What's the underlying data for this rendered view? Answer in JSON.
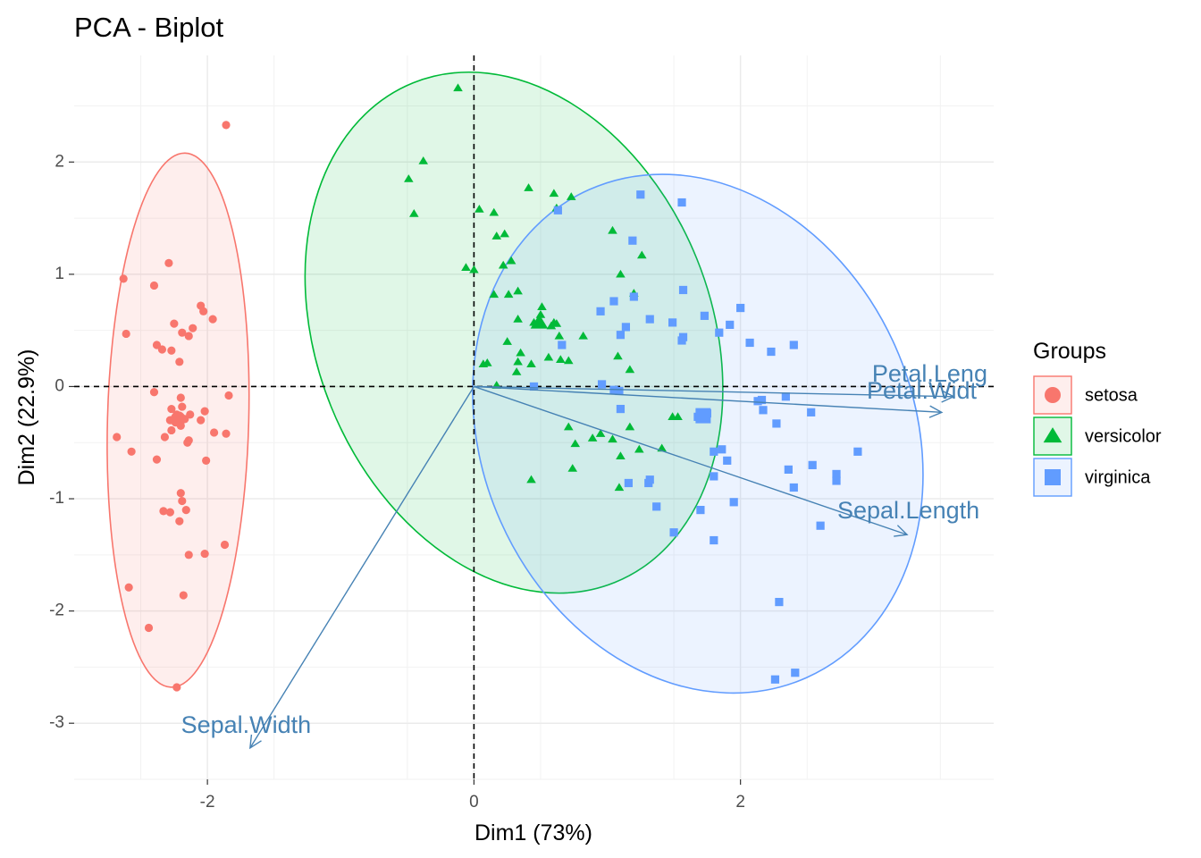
{
  "chart_data": {
    "type": "scatter",
    "title": "PCA - Biplot",
    "xlabel": "Dim1 (73%)",
    "ylabel": "Dim2 (22.9%)",
    "xlim": [
      -3.0,
      3.9
    ],
    "ylim": [
      -3.5,
      2.95
    ],
    "x_ticks": [
      -2,
      0,
      2
    ],
    "y_ticks": [
      -3,
      -2,
      -1,
      0,
      1,
      2
    ],
    "grid": true,
    "reference_lines": {
      "x": 0,
      "y": 0,
      "style": "dashed"
    },
    "legend": {
      "title": "Groups",
      "position": "right"
    },
    "groups": [
      {
        "name": "setosa",
        "color": "#F8766D",
        "shape": "circle",
        "centroid": [
          -2.22,
          -0.29
        ],
        "ellipse": {
          "center": [
            -2.22,
            -0.3
          ],
          "rx": 0.53,
          "ry": 2.38,
          "angle_deg": 1.5
        },
        "points": [
          [
            -2.68,
            -0.45
          ],
          [
            -2.59,
            -1.79
          ],
          [
            -2.44,
            -2.15
          ],
          [
            -2.23,
            -2.68
          ],
          [
            -2.14,
            -1.5
          ],
          [
            -2.02,
            -1.49
          ],
          [
            -1.87,
            -1.41
          ],
          [
            -2.18,
            -1.86
          ],
          [
            -2.33,
            -1.11
          ],
          [
            -2.28,
            -1.12
          ],
          [
            -2.19,
            -1.02
          ],
          [
            -2.2,
            -0.95
          ],
          [
            -2.16,
            -1.1
          ],
          [
            -2.21,
            -1.2
          ],
          [
            -2.57,
            -0.58
          ],
          [
            -2.38,
            -0.65
          ],
          [
            -2.01,
            -0.66
          ],
          [
            -2.14,
            -0.48
          ],
          [
            -2.15,
            -0.5
          ],
          [
            -2.32,
            -0.45
          ],
          [
            -2.27,
            -0.39
          ],
          [
            -1.95,
            -0.41
          ],
          [
            -1.86,
            -0.42
          ],
          [
            -2.28,
            -0.3
          ],
          [
            -2.2,
            -0.35
          ],
          [
            -2.23,
            -0.25
          ],
          [
            -2.19,
            -0.18
          ],
          [
            -2.13,
            -0.25
          ],
          [
            -2.27,
            -0.2
          ],
          [
            -2.2,
            -0.1
          ],
          [
            -2.4,
            -0.05
          ],
          [
            -2.02,
            -0.22
          ],
          [
            -2.05,
            -0.3
          ],
          [
            -2.26,
            -0.3
          ],
          [
            -2.17,
            -0.29
          ],
          [
            -2.24,
            -0.32
          ],
          [
            -2.21,
            -0.26
          ],
          [
            -1.84,
            -0.08
          ],
          [
            -2.61,
            0.47
          ],
          [
            -2.38,
            0.37
          ],
          [
            -2.34,
            0.33
          ],
          [
            -2.27,
            0.32
          ],
          [
            -2.19,
            0.48
          ],
          [
            -2.14,
            0.45
          ],
          [
            -2.11,
            0.52
          ],
          [
            -2.03,
            0.67
          ],
          [
            -2.05,
            0.72
          ],
          [
            -2.25,
            0.56
          ],
          [
            -1.96,
            0.6
          ],
          [
            -2.21,
            0.22
          ],
          [
            -2.63,
            0.96
          ],
          [
            -2.4,
            0.9
          ],
          [
            -2.29,
            1.1
          ],
          [
            -1.86,
            2.33
          ]
        ]
      },
      {
        "name": "versicolor",
        "color": "#00BA38",
        "shape": "triangle",
        "centroid": [
          0.49,
          0.57
        ],
        "ellipse": {
          "center": [
            0.3,
            0.48
          ],
          "rx": 1.48,
          "ry": 2.4,
          "angle_deg": -22
        },
        "points": [
          [
            -0.12,
            2.66
          ],
          [
            -0.38,
            2.01
          ],
          [
            -0.49,
            1.85
          ],
          [
            -0.45,
            1.54
          ],
          [
            0.04,
            1.58
          ],
          [
            0.15,
            1.55
          ],
          [
            0.41,
            1.77
          ],
          [
            0.6,
            1.72
          ],
          [
            0.73,
            1.69
          ],
          [
            0.23,
            1.36
          ],
          [
            0.17,
            1.34
          ],
          [
            0.62,
            1.59
          ],
          [
            1.04,
            1.39
          ],
          [
            0.28,
            1.12
          ],
          [
            0.22,
            1.08
          ],
          [
            -0.06,
            1.06
          ],
          [
            0.0,
            1.04
          ],
          [
            0.15,
            0.82
          ],
          [
            0.26,
            0.82
          ],
          [
            0.33,
            0.85
          ],
          [
            1.1,
            1.0
          ],
          [
            1.2,
            0.83
          ],
          [
            1.26,
            1.17
          ],
          [
            0.51,
            0.71
          ],
          [
            0.5,
            0.64
          ],
          [
            0.45,
            0.57
          ],
          [
            0.58,
            0.54
          ],
          [
            0.62,
            0.56
          ],
          [
            0.64,
            0.45
          ],
          [
            0.33,
            0.6
          ],
          [
            0.25,
            0.4
          ],
          [
            0.6,
            0.57
          ],
          [
            0.82,
            0.45
          ],
          [
            0.32,
            0.13
          ],
          [
            0.07,
            0.2
          ],
          [
            0.1,
            0.21
          ],
          [
            0.33,
            0.22
          ],
          [
            0.43,
            0.2
          ],
          [
            0.35,
            0.3
          ],
          [
            0.56,
            0.26
          ],
          [
            0.65,
            0.24
          ],
          [
            0.71,
            0.23
          ],
          [
            1.08,
            0.27
          ],
          [
            1.17,
            0.15
          ],
          [
            0.17,
            0.01
          ],
          [
            0.71,
            -0.36
          ],
          [
            1.24,
            -0.56
          ],
          [
            0.89,
            -0.46
          ],
          [
            1.04,
            -0.47
          ],
          [
            0.95,
            -0.42
          ],
          [
            0.74,
            -0.73
          ],
          [
            1.1,
            -0.62
          ],
          [
            1.09,
            -0.9
          ],
          [
            1.41,
            -0.55
          ],
          [
            1.49,
            -0.27
          ],
          [
            1.53,
            -0.27
          ],
          [
            0.43,
            -0.83
          ],
          [
            0.76,
            -0.51
          ],
          [
            1.17,
            -0.36
          ]
        ]
      },
      {
        "name": "virginica",
        "color": "#619CFF",
        "shape": "square",
        "centroid": [
          1.72,
          -0.26
        ],
        "ellipse": {
          "center": [
            1.68,
            -0.42
          ],
          "rx": 1.62,
          "ry": 2.38,
          "angle_deg": -24
        },
        "points": [
          [
            1.25,
            1.71
          ],
          [
            0.63,
            1.57
          ],
          [
            1.19,
            1.3
          ],
          [
            1.56,
            1.64
          ],
          [
            2.0,
            0.7
          ],
          [
            1.57,
            0.86
          ],
          [
            1.2,
            0.8
          ],
          [
            1.05,
            0.76
          ],
          [
            0.95,
            0.67
          ],
          [
            1.14,
            0.53
          ],
          [
            1.56,
            0.41
          ],
          [
            1.32,
            0.6
          ],
          [
            1.1,
            0.46
          ],
          [
            1.49,
            0.57
          ],
          [
            1.57,
            0.44
          ],
          [
            1.84,
            0.48
          ],
          [
            1.73,
            0.63
          ],
          [
            1.92,
            0.55
          ],
          [
            2.07,
            0.39
          ],
          [
            2.23,
            0.31
          ],
          [
            2.4,
            0.37
          ],
          [
            2.13,
            -0.13
          ],
          [
            2.34,
            -0.09
          ],
          [
            2.53,
            -0.23
          ],
          [
            2.88,
            -0.58
          ],
          [
            2.16,
            -0.12
          ],
          [
            1.68,
            -0.27
          ],
          [
            1.75,
            -0.24
          ],
          [
            1.86,
            -0.56
          ],
          [
            2.17,
            -0.21
          ],
          [
            2.27,
            -0.33
          ],
          [
            1.8,
            -0.58
          ],
          [
            1.95,
            -1.03
          ],
          [
            1.31,
            -0.86
          ],
          [
            1.9,
            -0.66
          ],
          [
            2.36,
            -0.74
          ],
          [
            2.6,
            -1.24
          ],
          [
            2.72,
            -0.78
          ],
          [
            2.72,
            -0.84
          ],
          [
            2.54,
            -0.7
          ],
          [
            2.29,
            -1.92
          ],
          [
            2.26,
            -2.61
          ],
          [
            2.41,
            -2.55
          ],
          [
            1.37,
            -1.07
          ],
          [
            1.7,
            -1.1
          ],
          [
            1.8,
            -1.37
          ],
          [
            1.5,
            -1.3
          ],
          [
            1.8,
            -0.8
          ],
          [
            2.4,
            -0.9
          ],
          [
            1.16,
            -0.86
          ],
          [
            1.32,
            -0.83
          ],
          [
            1.1,
            -0.2
          ],
          [
            1.09,
            -0.04
          ],
          [
            0.96,
            0.02
          ],
          [
            1.05,
            -0.03
          ],
          [
            0.45,
            0.0
          ],
          [
            0.66,
            0.37
          ]
        ]
      }
    ],
    "variables": [
      {
        "name": "Petal.Length",
        "label": "Petal.Leng",
        "x": 3.51,
        "y": -0.23,
        "label_x": 3.42,
        "label_y": 0.1
      },
      {
        "name": "Petal.Width",
        "label": "Petal.Widt",
        "x": 3.6,
        "y": -0.09,
        "label_x": 3.36,
        "label_y": -0.05
      },
      {
        "name": "Sepal.Length",
        "label": "Sepal.Length",
        "x": 3.25,
        "y": -1.32,
        "label_x": 3.26,
        "label_y": -1.12
      },
      {
        "name": "Sepal.Width",
        "label": "Sepal.Width",
        "x": -1.68,
        "y": -3.22,
        "label_x": -1.71,
        "label_y": -3.03
      }
    ]
  }
}
